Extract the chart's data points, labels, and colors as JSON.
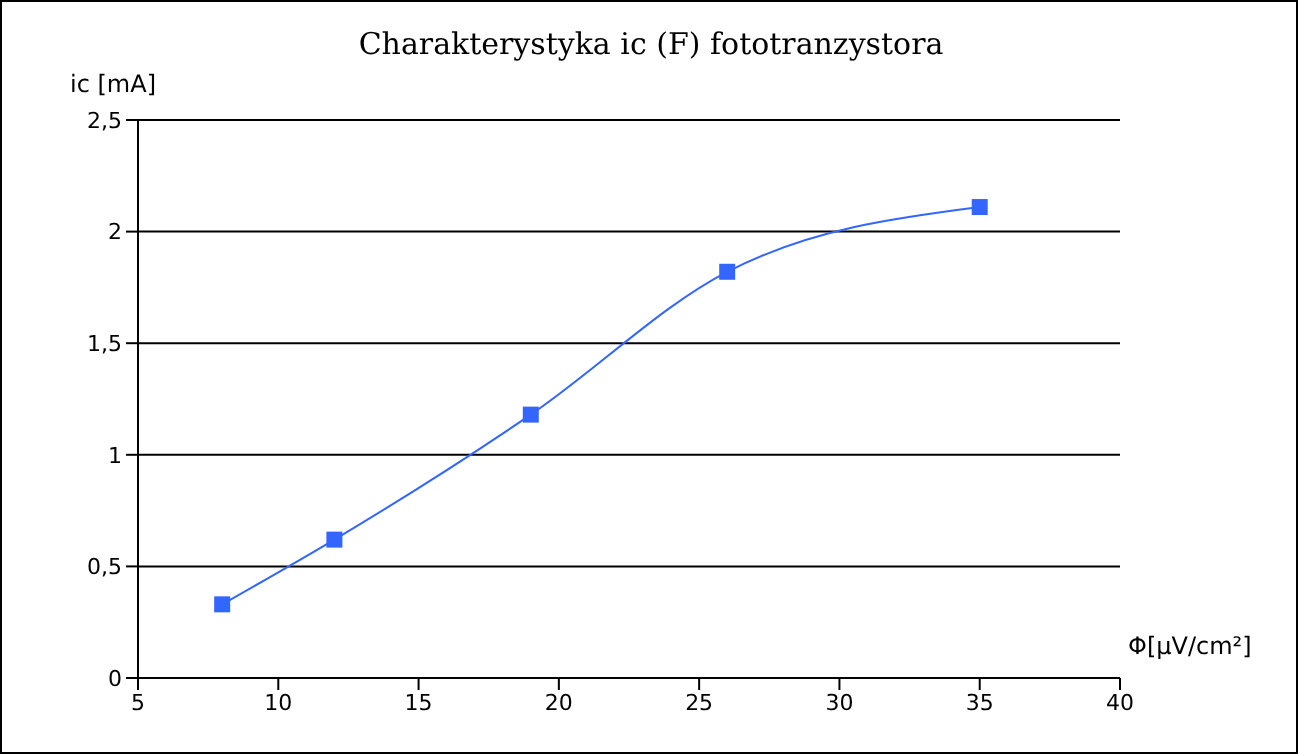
{
  "chart_data": {
    "type": "line",
    "title": "Charakterystyka ic (F) fototranzystora",
    "xlabel": "Φ[μV/cm²]",
    "ylabel": "ic [mA]",
    "x": [
      8,
      12,
      19,
      26,
      35
    ],
    "series": [
      {
        "color": "#3366ff",
        "values": [
          0.33,
          0.62,
          1.18,
          1.82,
          2.11
        ]
      }
    ],
    "xlim": [
      5,
      40
    ],
    "xticks": [
      5,
      10,
      15,
      20,
      25,
      30,
      35,
      40
    ],
    "ylim": [
      0,
      2.5
    ],
    "yticks": [
      0,
      {
        "value": 0.5,
        "label": "0,5"
      },
      1,
      {
        "value": 1.5,
        "label": "1,5"
      },
      2,
      {
        "value": 2.5,
        "label": "2,5"
      }
    ],
    "grid": "y",
    "legend": false,
    "marker": "square",
    "line_style": "solid"
  }
}
